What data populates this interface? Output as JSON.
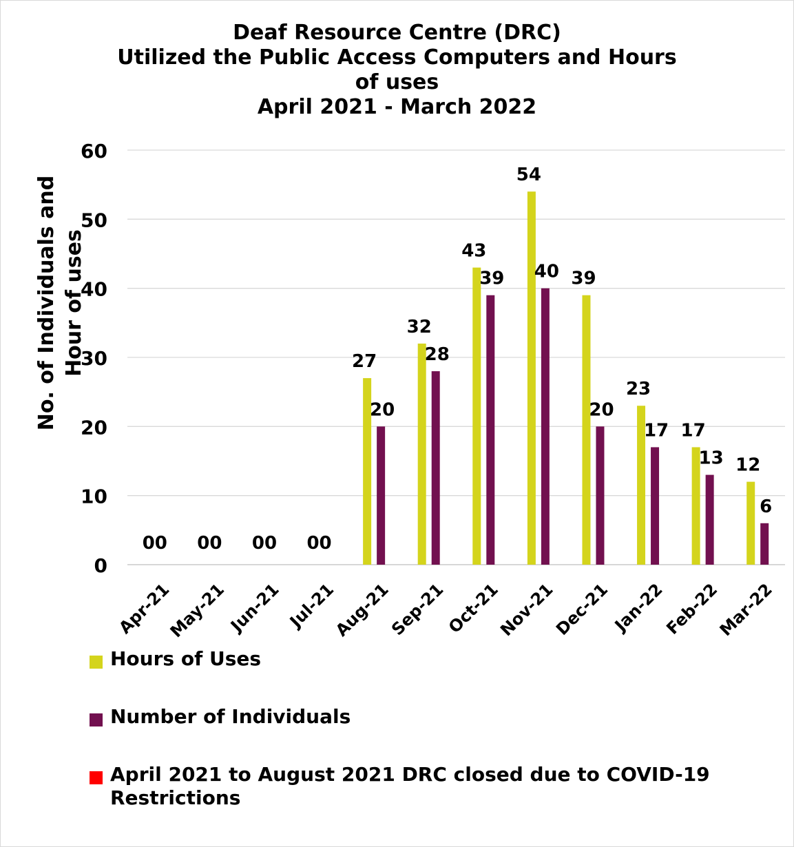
{
  "chart_data": {
    "type": "bar",
    "title_lines": [
      "Deaf Resource Centre (DRC)",
      "Utilized the Public Access Computers and Hours",
      "of uses",
      "April 2021 - March 2022"
    ],
    "ylabel_lines": [
      "No. of Individuals and",
      "Hour of uses"
    ],
    "xlabel": "",
    "ylim": [
      0,
      60
    ],
    "yticks": [
      0,
      10,
      20,
      30,
      40,
      50,
      60
    ],
    "grid": true,
    "legend_position": "bottom",
    "categories": [
      "Apr-21",
      "May-21",
      "Jun-21",
      "Jul-21",
      "Aug-21",
      "Sep-21",
      "Oct-21",
      "Nov-21",
      "Dec-21",
      "Jan-22",
      "Feb-22",
      "Mar-22"
    ],
    "closed_label": "00",
    "series": [
      {
        "name": "Hours of Uses",
        "color": "#d4d41c",
        "values": [
          0,
          0,
          0,
          0,
          27,
          32,
          43,
          54,
          39,
          23,
          17,
          12
        ]
      },
      {
        "name": "Number of Individuals",
        "color": "#72104f",
        "values": [
          0,
          0,
          0,
          0,
          20,
          28,
          39,
          40,
          20,
          17,
          13,
          6
        ]
      }
    ],
    "legend": [
      {
        "label": "Hours of Uses",
        "color": "#d4d41c"
      },
      {
        "label": "Number of Individuals",
        "color": "#72104f"
      },
      {
        "label": "April 2021 to August 2021 DRC closed due to COVID-19 Restrictions",
        "color": "#ff0000"
      }
    ]
  }
}
